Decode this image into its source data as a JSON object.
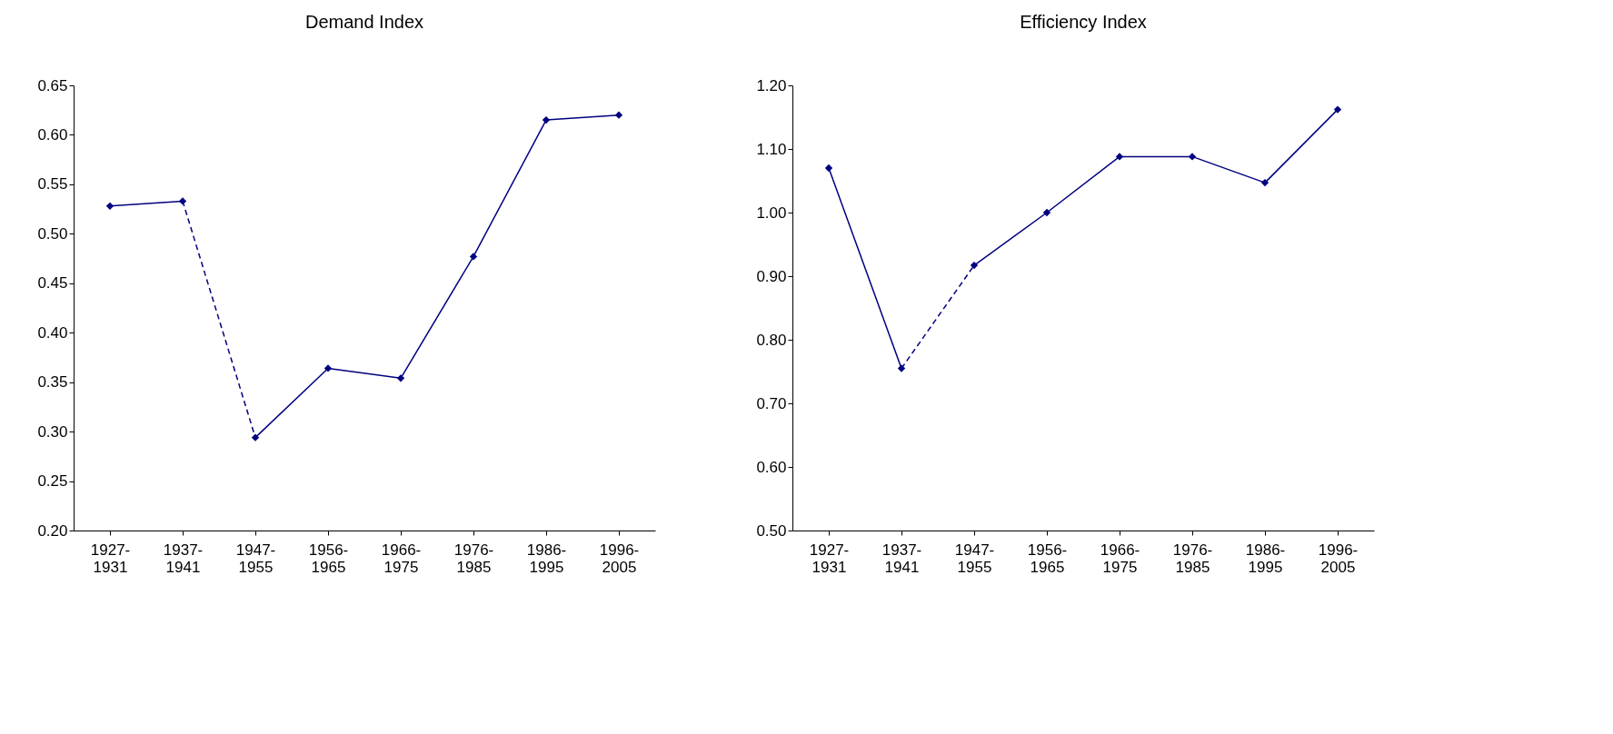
{
  "chart_data": [
    {
      "type": "line",
      "title": "Demand Index",
      "categories": [
        "1927-\n1931",
        "1937-\n1941",
        "1947-\n1955",
        "1956-\n1965",
        "1966-\n1975",
        "1976-\n1985",
        "1986-\n1995",
        "1996-\n2005"
      ],
      "ylim": [
        0.2,
        0.65
      ],
      "yticks": [
        {
          "value": 0.2,
          "label": "0.20"
        },
        {
          "value": 0.25,
          "label": "0.25"
        },
        {
          "value": 0.3,
          "label": "0.30"
        },
        {
          "value": 0.35,
          "label": "0.35"
        },
        {
          "value": 0.4,
          "label": "0.40"
        },
        {
          "value": 0.45,
          "label": "0.45"
        },
        {
          "value": 0.5,
          "label": "0.50"
        },
        {
          "value": 0.55,
          "label": "0.55"
        },
        {
          "value": 0.6,
          "label": "0.60"
        },
        {
          "value": 0.65,
          "label": "0.65"
        }
      ],
      "series": [
        {
          "color": "#000080",
          "line_style": "solid",
          "marker": "diamond",
          "values": [
            0.528,
            0.533,
            null,
            null,
            null,
            null,
            null,
            null
          ]
        },
        {
          "color": "#000080",
          "line_style": "dashed",
          "marker": "none",
          "values": [
            null,
            0.533,
            0.294,
            null,
            null,
            null,
            null,
            null
          ]
        },
        {
          "color": "#000080",
          "line_style": "solid",
          "marker": "diamond",
          "values": [
            null,
            null,
            0.294,
            0.364,
            0.354,
            0.477,
            0.615,
            0.62
          ]
        }
      ]
    },
    {
      "type": "line",
      "title": "Efficiency Index",
      "categories": [
        "1927-\n1931",
        "1937-\n1941",
        "1947-\n1955",
        "1956-\n1965",
        "1966-\n1975",
        "1976-\n1985",
        "1986-\n1995",
        "1996-\n2005"
      ],
      "ylim": [
        0.5,
        1.2
      ],
      "yticks": [
        {
          "value": 0.5,
          "label": "0.50"
        },
        {
          "value": 0.6,
          "label": "0.60"
        },
        {
          "value": 0.7,
          "label": "0.70"
        },
        {
          "value": 0.8,
          "label": "0.80"
        },
        {
          "value": 0.9,
          "label": "0.90"
        },
        {
          "value": 1.0,
          "label": "1.00"
        },
        {
          "value": 1.1,
          "label": "1.10"
        },
        {
          "value": 1.2,
          "label": "1.20"
        }
      ],
      "series": [
        {
          "color": "#000080",
          "line_style": "solid",
          "marker": "diamond",
          "values": [
            1.07,
            0.755,
            null,
            null,
            null,
            null,
            null,
            null
          ]
        },
        {
          "color": "#000080",
          "line_style": "dashed",
          "marker": "none",
          "values": [
            null,
            0.755,
            0.917,
            null,
            null,
            null,
            null,
            null
          ]
        },
        {
          "color": "#000080",
          "line_style": "solid",
          "marker": "diamond",
          "values": [
            null,
            null,
            0.917,
            1.0,
            1.088,
            1.088,
            1.047,
            1.162
          ]
        }
      ]
    }
  ]
}
